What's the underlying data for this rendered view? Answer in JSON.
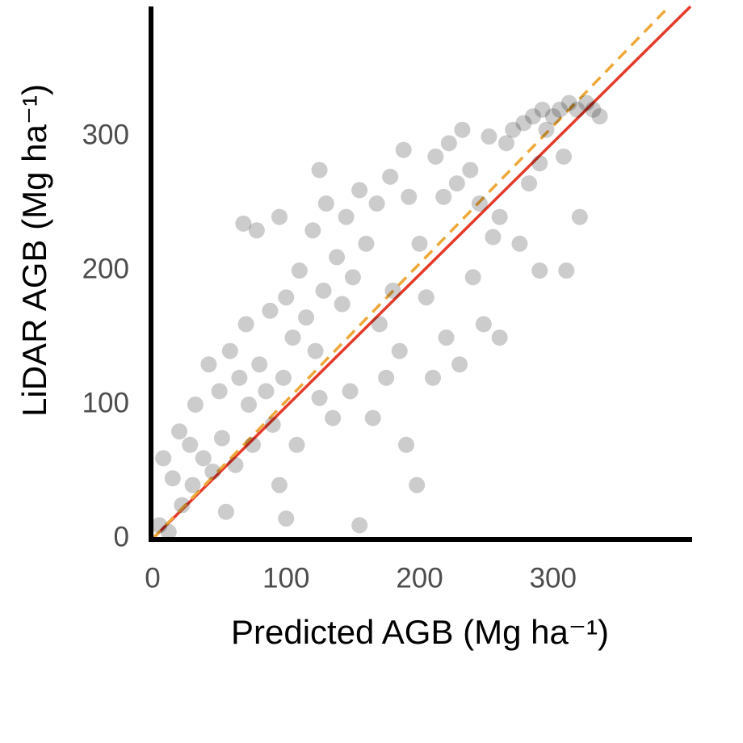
{
  "chart_data": {
    "type": "scatter",
    "x_label": "Predicted AGB (Mg ha⁻¹)",
    "y_label": "LiDAR  AGB (Mg ha⁻¹)",
    "xlim": [
      0,
      403
    ],
    "ylim": [
      0,
      397
    ],
    "xticks": [
      0,
      100,
      200,
      300
    ],
    "yticks": [
      0,
      100,
      200,
      300
    ],
    "grid": false,
    "series": [
      {
        "color": "#000000",
        "alpha": 0.2,
        "x": [
          5,
          8,
          12,
          15,
          20,
          22,
          28,
          30,
          32,
          38,
          42,
          45,
          50,
          52,
          55,
          58,
          62,
          65,
          70,
          72,
          75,
          78,
          80,
          85,
          88,
          90,
          95,
          98,
          100,
          105,
          108,
          110,
          115,
          120,
          122,
          125,
          128,
          130,
          135,
          138,
          142,
          145,
          148,
          150,
          155,
          155,
          160,
          165,
          168,
          170,
          175,
          178,
          180,
          185,
          188,
          192,
          198,
          200,
          205,
          210,
          212,
          218,
          220,
          222,
          228,
          232,
          238,
          240,
          245,
          248,
          252,
          255,
          260,
          265,
          270,
          275,
          278,
          282,
          285,
          290,
          292,
          295,
          300,
          305,
          308,
          312,
          318,
          320,
          325,
          330,
          335,
          290,
          310,
          260,
          230,
          190,
          100,
          68,
          125,
          95
        ],
        "values": [
          10,
          60,
          5,
          45,
          80,
          25,
          70,
          40,
          100,
          60,
          130,
          50,
          110,
          75,
          20,
          140,
          55,
          120,
          160,
          100,
          70,
          230,
          130,
          110,
          170,
          85,
          40,
          120,
          180,
          150,
          70,
          200,
          165,
          230,
          140,
          105,
          185,
          250,
          90,
          210,
          175,
          240,
          110,
          195,
          10,
          260,
          220,
          90,
          250,
          160,
          120,
          270,
          185,
          140,
          290,
          255,
          40,
          220,
          180,
          120,
          285,
          255,
          150,
          295,
          265,
          305,
          275,
          195,
          250,
          160,
          300,
          225,
          240,
          295,
          305,
          220,
          310,
          265,
          315,
          280,
          320,
          305,
          315,
          320,
          285,
          325,
          320,
          240,
          325,
          320,
          315,
          200,
          200,
          150,
          130,
          70,
          15,
          235,
          275,
          240
        ]
      }
    ],
    "lines": [
      {
        "color": "#e53a2a",
        "dashed": false,
        "x": [
          0,
          403
        ],
        "values": [
          0,
          397
        ]
      },
      {
        "color": "#eea83a",
        "dashed": true,
        "x": [
          0,
          387
        ],
        "values": [
          0,
          397
        ]
      }
    ]
  }
}
